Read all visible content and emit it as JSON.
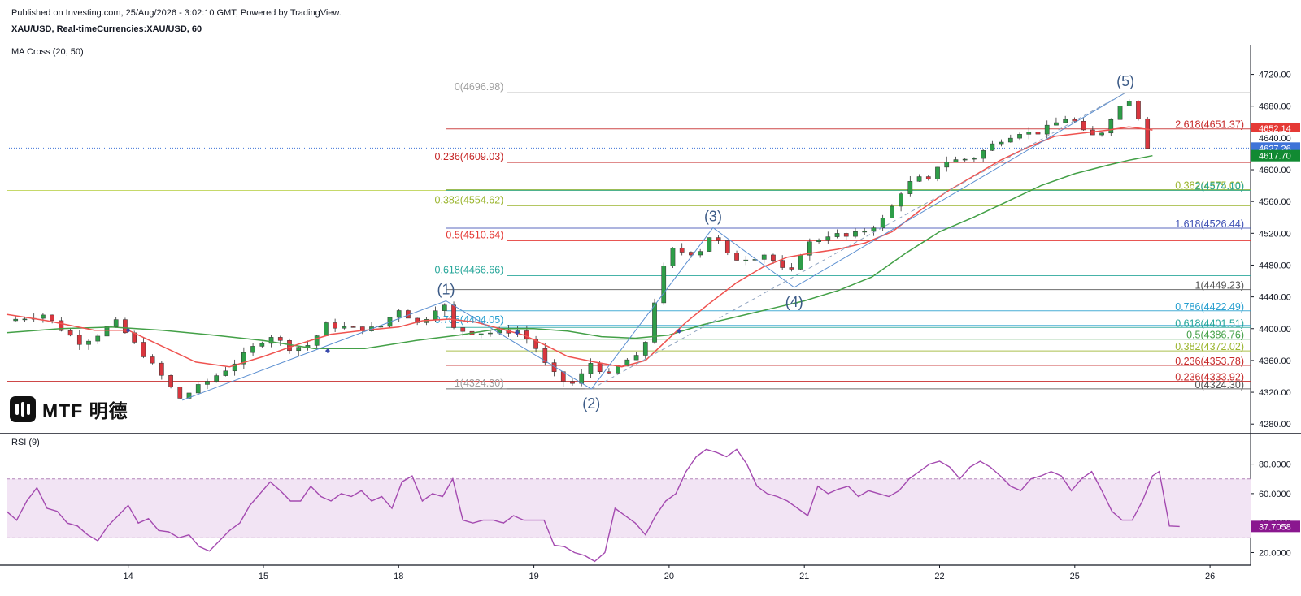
{
  "header": {
    "published": "Published on Investing.com, 25/Aug/2026 - 3:02:10 GMT, Powered by TradingView.",
    "symbol": "XAU/USD, Real-timeCurrencies:XAU/USD, 60",
    "indicator_label": "MA Cross (20, 50)",
    "rsi_label": "RSI (9)"
  },
  "logo": {
    "text": "MTF 明德"
  },
  "chart_data": {
    "type": "candlestick",
    "instrument": "XAU/USD",
    "timeframe": "60",
    "x_ticks": [
      {
        "label": "14",
        "t": 3.0
      },
      {
        "label": "15",
        "t": 7.0
      },
      {
        "label": "18",
        "t": 11.0
      },
      {
        "label": "19",
        "t": 15.0
      },
      {
        "label": "20",
        "t": 19.0
      },
      {
        "label": "21",
        "t": 23.0
      },
      {
        "label": "22",
        "t": 27.0
      },
      {
        "label": "25",
        "t": 31.0
      },
      {
        "label": "26",
        "t": 35.0
      }
    ],
    "x_range": [
      -0.6,
      36.2
    ],
    "price_axis": {
      "ylim": [
        4270,
        4740
      ],
      "ticks": [
        "4280.00",
        "4320.00",
        "4360.00",
        "4400.00",
        "4440.00",
        "4480.00",
        "4520.00",
        "4560.00",
        "4600.00",
        "4640.00",
        "4680.00",
        "4720.00"
      ]
    },
    "rsi_axis": {
      "ylim": [
        12,
        93
      ],
      "ticks": [
        "20.0000",
        "40.0000",
        "60.0000",
        "80.0000"
      ],
      "band": [
        30,
        70
      ]
    },
    "price_markers": [
      {
        "label": "4652.14",
        "value": 4652.14,
        "color": "#e53935"
      },
      {
        "label": "4640.00",
        "value": 4640.0,
        "color": "#ffffff"
      },
      {
        "label": "4627.26",
        "value": 4627.26,
        "color": "#3f73d8"
      },
      {
        "label": "4617.70",
        "value": 4617.7,
        "color": "#118a32"
      }
    ],
    "rsi_value": {
      "label": "37.7058",
      "value": 37.7058,
      "color": "#8a178f"
    },
    "current_price": 4627.26,
    "series": [
      {
        "name": "MA 20",
        "color": "#ef5350"
      },
      {
        "name": "MA 50",
        "color": "#43a047"
      },
      {
        "name": "RSI (9)",
        "color": "#a44ab0"
      }
    ],
    "anchors": [
      [
        -0.6,
        4410
      ],
      [
        0.5,
        4418
      ],
      [
        1.0,
        4400
      ],
      [
        1.6,
        4382
      ],
      [
        2.2,
        4395
      ],
      [
        2.6,
        4410
      ],
      [
        3.0,
        4390
      ],
      [
        3.6,
        4360
      ],
      [
        4.0,
        4340
      ],
      [
        4.5,
        4312
      ],
      [
        5.2,
        4330
      ],
      [
        6.0,
        4352
      ],
      [
        6.8,
        4380
      ],
      [
        7.2,
        4392
      ],
      [
        7.8,
        4375
      ],
      [
        8.4,
        4380
      ],
      [
        8.8,
        4405
      ],
      [
        9.6,
        4400
      ],
      [
        10.4,
        4400
      ],
      [
        11.0,
        4425
      ],
      [
        11.6,
        4405
      ],
      [
        12.3,
        4435
      ],
      [
        12.6,
        4400
      ],
      [
        13.2,
        4395
      ],
      [
        13.8,
        4395
      ],
      [
        14.5,
        4398
      ],
      [
        15.0,
        4380
      ],
      [
        15.4,
        4350
      ],
      [
        15.8,
        4335
      ],
      [
        16.2,
        4330
      ],
      [
        16.7,
        4358
      ],
      [
        17.2,
        4340
      ],
      [
        17.7,
        4360
      ],
      [
        18.2,
        4365
      ],
      [
        18.6,
        4440
      ],
      [
        19.0,
        4500
      ],
      [
        19.6,
        4495
      ],
      [
        20.0,
        4500
      ],
      [
        20.3,
        4525
      ],
      [
        20.6,
        4495
      ],
      [
        21.0,
        4488
      ],
      [
        21.5,
        4490
      ],
      [
        21.9,
        4495
      ],
      [
        22.3,
        4475
      ],
      [
        22.6,
        4470
      ],
      [
        23.0,
        4505
      ],
      [
        23.4,
        4512
      ],
      [
        23.8,
        4520
      ],
      [
        24.2,
        4515
      ],
      [
        24.6,
        4520
      ],
      [
        25.0,
        4528
      ],
      [
        25.4,
        4540
      ],
      [
        25.9,
        4575
      ],
      [
        26.3,
        4590
      ],
      [
        26.7,
        4585
      ],
      [
        27.0,
        4610
      ],
      [
        27.5,
        4612
      ],
      [
        28.0,
        4615
      ],
      [
        28.5,
        4630
      ],
      [
        28.9,
        4640
      ],
      [
        29.4,
        4648
      ],
      [
        29.8,
        4645
      ],
      [
        30.3,
        4655
      ],
      [
        30.7,
        4665
      ],
      [
        31.0,
        4660
      ],
      [
        31.4,
        4640
      ],
      [
        31.8,
        4648
      ],
      [
        32.2,
        4675
      ],
      [
        32.6,
        4690
      ],
      [
        32.9,
        4665
      ],
      [
        33.1,
        4630
      ],
      [
        33.3,
        4628
      ]
    ],
    "ma20_path": [
      [
        -0.6,
        4418
      ],
      [
        0.6,
        4410
      ],
      [
        2.0,
        4398
      ],
      [
        3.0,
        4398
      ],
      [
        4.0,
        4378
      ],
      [
        5.0,
        4358
      ],
      [
        6.0,
        4352
      ],
      [
        7.0,
        4365
      ],
      [
        8.0,
        4380
      ],
      [
        9.0,
        4393
      ],
      [
        10.0,
        4398
      ],
      [
        11.0,
        4402
      ],
      [
        11.7,
        4410
      ],
      [
        12.5,
        4412
      ],
      [
        13.3,
        4408
      ],
      [
        14.0,
        4400
      ],
      [
        14.7,
        4392
      ],
      [
        15.4,
        4378
      ],
      [
        16.0,
        4365
      ],
      [
        16.8,
        4358
      ],
      [
        17.6,
        4352
      ],
      [
        18.3,
        4360
      ],
      [
        18.8,
        4380
      ],
      [
        19.5,
        4408
      ],
      [
        20.2,
        4432
      ],
      [
        21.0,
        4458
      ],
      [
        21.8,
        4478
      ],
      [
        22.5,
        4490
      ],
      [
        23.2,
        4495
      ],
      [
        24.0,
        4500
      ],
      [
        24.8,
        4508
      ],
      [
        25.6,
        4522
      ],
      [
        26.4,
        4548
      ],
      [
        27.2,
        4572
      ],
      [
        28.0,
        4592
      ],
      [
        28.8,
        4612
      ],
      [
        29.6,
        4628
      ],
      [
        30.4,
        4642
      ],
      [
        31.2,
        4646
      ],
      [
        32.0,
        4650
      ],
      [
        32.6,
        4654
      ],
      [
        33.3,
        4650
      ]
    ],
    "ma50_path": [
      [
        -0.6,
        4395
      ],
      [
        1.0,
        4400
      ],
      [
        2.5,
        4402
      ],
      [
        4.0,
        4398
      ],
      [
        5.5,
        4392
      ],
      [
        7.0,
        4385
      ],
      [
        8.5,
        4375
      ],
      [
        10.0,
        4375
      ],
      [
        11.5,
        4385
      ],
      [
        12.8,
        4392
      ],
      [
        14.0,
        4400
      ],
      [
        15.0,
        4400
      ],
      [
        16.0,
        4397
      ],
      [
        17.0,
        4390
      ],
      [
        18.0,
        4388
      ],
      [
        19.0,
        4392
      ],
      [
        20.0,
        4405
      ],
      [
        21.0,
        4415
      ],
      [
        22.0,
        4425
      ],
      [
        23.0,
        4435
      ],
      [
        24.0,
        4448
      ],
      [
        25.0,
        4465
      ],
      [
        26.0,
        4495
      ],
      [
        27.0,
        4522
      ],
      [
        28.0,
        4540
      ],
      [
        29.0,
        4560
      ],
      [
        30.0,
        4580
      ],
      [
        31.0,
        4595
      ],
      [
        32.0,
        4606
      ],
      [
        32.6,
        4612
      ],
      [
        33.3,
        4617.7
      ]
    ],
    "rsi": [
      [
        -0.6,
        48
      ],
      [
        -0.3,
        42
      ],
      [
        0.0,
        55
      ],
      [
        0.3,
        64
      ],
      [
        0.6,
        50
      ],
      [
        0.9,
        48
      ],
      [
        1.2,
        40
      ],
      [
        1.5,
        38
      ],
      [
        1.8,
        32
      ],
      [
        2.1,
        28
      ],
      [
        2.4,
        38
      ],
      [
        2.7,
        45
      ],
      [
        3.0,
        52
      ],
      [
        3.3,
        40
      ],
      [
        3.6,
        43
      ],
      [
        3.9,
        35
      ],
      [
        4.2,
        34
      ],
      [
        4.5,
        30
      ],
      [
        4.8,
        32
      ],
      [
        5.1,
        24
      ],
      [
        5.4,
        21
      ],
      [
        5.7,
        28
      ],
      [
        6.0,
        35
      ],
      [
        6.3,
        40
      ],
      [
        6.6,
        52
      ],
      [
        6.9,
        60
      ],
      [
        7.2,
        68
      ],
      [
        7.5,
        62
      ],
      [
        7.8,
        55
      ],
      [
        8.1,
        55
      ],
      [
        8.4,
        65
      ],
      [
        8.7,
        58
      ],
      [
        9.0,
        55
      ],
      [
        9.3,
        60
      ],
      [
        9.6,
        58
      ],
      [
        9.9,
        62
      ],
      [
        10.2,
        55
      ],
      [
        10.5,
        58
      ],
      [
        10.8,
        50
      ],
      [
        11.1,
        68
      ],
      [
        11.4,
        72
      ],
      [
        11.7,
        55
      ],
      [
        12.0,
        60
      ],
      [
        12.3,
        58
      ],
      [
        12.6,
        70
      ],
      [
        12.9,
        42
      ],
      [
        13.2,
        40
      ],
      [
        13.5,
        42
      ],
      [
        13.8,
        42
      ],
      [
        14.1,
        40
      ],
      [
        14.4,
        45
      ],
      [
        14.7,
        42
      ],
      [
        15.0,
        42
      ],
      [
        15.3,
        42
      ],
      [
        15.6,
        25
      ],
      [
        15.9,
        24
      ],
      [
        16.2,
        20
      ],
      [
        16.5,
        18
      ],
      [
        16.8,
        14
      ],
      [
        17.1,
        20
      ],
      [
        17.4,
        50
      ],
      [
        17.7,
        45
      ],
      [
        18.0,
        40
      ],
      [
        18.3,
        32
      ],
      [
        18.6,
        45
      ],
      [
        18.9,
        55
      ],
      [
        19.2,
        60
      ],
      [
        19.5,
        75
      ],
      [
        19.8,
        85
      ],
      [
        20.1,
        90
      ],
      [
        20.4,
        88
      ],
      [
        20.7,
        85
      ],
      [
        21.0,
        90
      ],
      [
        21.3,
        80
      ],
      [
        21.6,
        65
      ],
      [
        21.9,
        60
      ],
      [
        22.2,
        58
      ],
      [
        22.5,
        55
      ],
      [
        22.8,
        50
      ],
      [
        23.1,
        45
      ],
      [
        23.4,
        65
      ],
      [
        23.7,
        60
      ],
      [
        24.0,
        63
      ],
      [
        24.3,
        65
      ],
      [
        24.6,
        58
      ],
      [
        24.9,
        62
      ],
      [
        25.2,
        60
      ],
      [
        25.5,
        58
      ],
      [
        25.8,
        62
      ],
      [
        26.1,
        70
      ],
      [
        26.4,
        75
      ],
      [
        26.7,
        80
      ],
      [
        27.0,
        82
      ],
      [
        27.3,
        78
      ],
      [
        27.6,
        70
      ],
      [
        27.9,
        78
      ],
      [
        28.2,
        82
      ],
      [
        28.5,
        78
      ],
      [
        28.8,
        72
      ],
      [
        29.1,
        65
      ],
      [
        29.4,
        62
      ],
      [
        29.7,
        70
      ],
      [
        30.0,
        72
      ],
      [
        30.3,
        75
      ],
      [
        30.6,
        72
      ],
      [
        30.9,
        62
      ],
      [
        31.2,
        70
      ],
      [
        31.5,
        75
      ],
      [
        31.8,
        62
      ],
      [
        32.1,
        48
      ],
      [
        32.4,
        42
      ],
      [
        32.7,
        42
      ],
      [
        33.0,
        55
      ],
      [
        33.3,
        72
      ],
      [
        33.5,
        75
      ],
      [
        33.8,
        38
      ],
      [
        34.1,
        37.7
      ]
    ],
    "fib_lines": [
      {
        "label": "0(4696.98)",
        "value": 4696.98,
        "x0": 14.2,
        "x1": 36.2,
        "color": "#9e9e9e",
        "label_side": "left",
        "label_x": 14.2
      },
      {
        "label": "2.618(4651.37)",
        "value": 4651.37,
        "x0": 12.4,
        "x1": 36.2,
        "color": "#c62828",
        "label_side": "right"
      },
      {
        "label": "0.236(4609.03)",
        "value": 4609.03,
        "x0": 14.2,
        "x1": 36.2,
        "color": "#c62828",
        "label_side": "left",
        "label_x": 14.2
      },
      {
        "label": "0.382(4575.00)",
        "value": 4575.0,
        "x0": 12.4,
        "x1": 36.2,
        "color": "#9bb52e",
        "label_side": "right"
      },
      {
        "label": "2(4574.10)",
        "value": 4574.1,
        "x0": 12.4,
        "x1": 36.2,
        "color": "#26a69a",
        "label_side": "right"
      },
      {
        "label": "0.382(4554.62)",
        "value": 4554.62,
        "x0": 14.2,
        "x1": 36.2,
        "color": "#9bb52e",
        "label_side": "left",
        "label_x": 14.2
      },
      {
        "label": "1.618(4526.44)",
        "value": 4526.44,
        "x0": 12.4,
        "x1": 36.2,
        "color": "#3f51b5",
        "label_side": "right"
      },
      {
        "label": "0.5(4510.64)",
        "value": 4510.64,
        "x0": 14.2,
        "x1": 36.2,
        "color": "#e53935",
        "label_side": "left",
        "label_x": 14.2
      },
      {
        "label": "0.618(4466.66)",
        "value": 4466.66,
        "x0": 14.2,
        "x1": 36.2,
        "color": "#26a69a",
        "label_side": "left",
        "label_x": 14.2
      },
      {
        "label": "1(4449.23)",
        "value": 4449.23,
        "x0": 12.4,
        "x1": 36.2,
        "color": "#555555",
        "label_side": "right"
      },
      {
        "label": "0.786(4422.49)",
        "value": 4422.49,
        "x0": 12.4,
        "x1": 36.2,
        "color": "#29a0d0",
        "label_side": "right"
      },
      {
        "label": "0.786(4404.05)",
        "value": 4404.05,
        "x0": 14.2,
        "x1": 36.2,
        "color": "#29a0d0",
        "label_side": "left",
        "label_x": 14.2
      },
      {
        "label": "0.618(4401.51)",
        "value": 4401.51,
        "x0": 12.4,
        "x1": 36.2,
        "color": "#26a69a",
        "label_side": "right"
      },
      {
        "label": "0.5(4386.76)",
        "value": 4386.76,
        "x0": 12.4,
        "x1": 36.2,
        "color": "#43a047",
        "label_side": "right"
      },
      {
        "label": "0.382(4372.02)",
        "value": 4372.02,
        "x0": 12.4,
        "x1": 36.2,
        "color": "#9bb52e",
        "label_side": "right"
      },
      {
        "label": "0.236(4353.78)",
        "value": 4353.78,
        "x0": 12.4,
        "x1": 36.2,
        "color": "#c62828",
        "label_side": "right"
      },
      {
        "label": "0.236(4333.92)",
        "value": 4333.92,
        "x0": -0.6,
        "x1": 36.2,
        "color": "#c62828",
        "label_side": "right"
      },
      {
        "label": "1(4324.30)",
        "value": 4324.3,
        "x0": 14.2,
        "x1": 16.5,
        "color": "#9e9e9e",
        "label_side": "left",
        "label_x": 14.2
      },
      {
        "label": "0(4324.30)",
        "value": 4324.3,
        "x0": 12.4,
        "x1": 36.2,
        "color": "#555555",
        "label_side": "right"
      }
    ],
    "long_line": {
      "value": 4575.0,
      "color": "#c6d96a"
    },
    "wave_labels": [
      {
        "label": "(1)",
        "t": 12.4,
        "value": 4435,
        "pos": "above"
      },
      {
        "label": "(2)",
        "t": 16.7,
        "value": 4324,
        "pos": "below"
      },
      {
        "label": "(3)",
        "t": 20.3,
        "value": 4527,
        "pos": "above"
      },
      {
        "label": "(4)",
        "t": 22.7,
        "value": 4452,
        "pos": "below"
      },
      {
        "label": "(5)",
        "t": 32.5,
        "value": 4697,
        "pos": "above"
      }
    ],
    "wave_points": [
      [
        4.6,
        4310
      ],
      [
        12.4,
        4435
      ],
      [
        16.7,
        4324
      ],
      [
        20.3,
        4527
      ],
      [
        22.7,
        4452
      ],
      [
        32.5,
        4697
      ]
    ],
    "cross_markers": [
      [
        3.0,
        4398
      ],
      [
        8.9,
        4372
      ],
      [
        14.5,
        4395
      ],
      [
        19.3,
        4397
      ]
    ]
  }
}
